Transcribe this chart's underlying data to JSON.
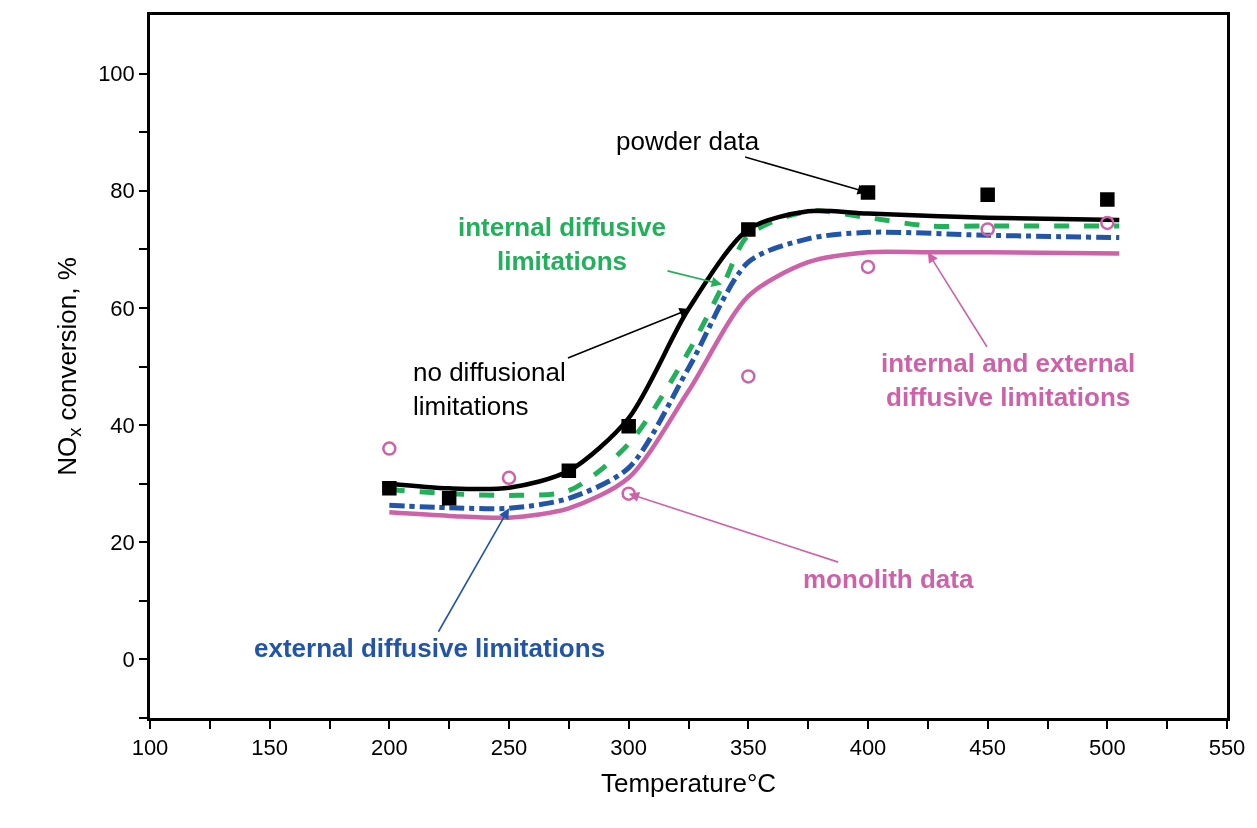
{
  "chart_data": {
    "type": "line",
    "xlabel": "Temperature°C",
    "ylabel": "NO$_{x}$ conversion, %",
    "xlim": [
      100,
      550
    ],
    "ylim": [
      -10,
      110
    ],
    "xticks": [
      100,
      {
        "value": 125,
        "label": null
      },
      150,
      {
        "value": 175,
        "label": null
      },
      200,
      {
        "value": 225,
        "label": null
      },
      250,
      {
        "value": 275,
        "label": null
      },
      300,
      {
        "value": 325,
        "label": null
      },
      350,
      {
        "value": 375,
        "label": null
      },
      400,
      {
        "value": 425,
        "label": null
      },
      450,
      {
        "value": 475,
        "label": null
      },
      500,
      {
        "value": 525,
        "label": null
      },
      550
    ],
    "yticks": [
      {
        "value": -10,
        "label": null
      },
      0,
      {
        "value": 10,
        "label": null
      },
      20,
      {
        "value": 30,
        "label": null
      },
      40,
      {
        "value": 50,
        "label": null
      },
      60,
      {
        "value": 70,
        "label": null
      },
      80,
      {
        "value": 90,
        "label": null
      },
      100
    ],
    "series": [
      {
        "color": "#ce62a8",
        "line_style": "solid",
        "x": [
          200,
          225,
          250,
          275,
          300,
          325,
          350,
          375,
          400,
          425,
          450,
          505
        ],
        "values": [
          25.1,
          24.5,
          24.2,
          25.8,
          31,
          45.8,
          62,
          67.8,
          69.5,
          69.5,
          69.5,
          69.3
        ]
      },
      {
        "color": "#2255a8",
        "line_style": "dashdot",
        "x": [
          200,
          225,
          250,
          275,
          300,
          325,
          350,
          375,
          400,
          450,
          505
        ],
        "values": [
          26.3,
          25.9,
          25.8,
          27.5,
          32.7,
          49.7,
          67.8,
          71.8,
          72.9,
          72.4,
          72
        ]
      },
      {
        "color": "#22b05a",
        "line_style": "dashed",
        "x": [
          200,
          225,
          250,
          275,
          300,
          325,
          340,
          350,
          375,
          400,
          425,
          450,
          505
        ],
        "values": [
          29,
          28.3,
          28,
          28.8,
          36.8,
          52.5,
          64.4,
          72.4,
          76.5,
          75.4,
          74,
          74,
          74
        ]
      },
      {
        "color": "#000000",
        "line_style": "solid",
        "x": [
          200,
          225,
          250,
          275,
          300,
          325,
          350,
          375,
          400,
          450,
          505
        ],
        "values": [
          30,
          29.2,
          29.3,
          32.2,
          41.2,
          59.8,
          73.4,
          76.5,
          76.1,
          75.4,
          75
        ]
      },
      {
        "type": "scatter",
        "color": "#000000",
        "marker": "square",
        "x": [
          200,
          225,
          275,
          300,
          350,
          400,
          450,
          500
        ],
        "values": [
          29.2,
          27.5,
          32.2,
          39.8,
          73.4,
          79.7,
          79.3,
          78.5
        ]
      },
      {
        "type": "scatter",
        "color": "#ce62a8",
        "marker": "circle-open",
        "x": [
          200,
          250,
          300,
          350,
          400,
          450,
          500
        ],
        "values": [
          36,
          31,
          28.3,
          48.3,
          67,
          73.4,
          74.5
        ]
      }
    ],
    "annotations": [
      {
        "text": "powder data",
        "x": 400,
        "y": 79.7
      },
      {
        "text": "internal diffusive\nlimitations",
        "x": 339,
        "y": 64
      },
      {
        "text": "no diffusional\nlimitations",
        "x": 325.6,
        "y": 59.8
      },
      {
        "text": "internal and external\ndiffusive limitations",
        "x": 425,
        "y": 69.5
      },
      {
        "text": "monolith data",
        "x": 300,
        "y": 28.3
      },
      {
        "text": "external diffusive limitations",
        "x": 250,
        "y": 25.8
      }
    ]
  }
}
